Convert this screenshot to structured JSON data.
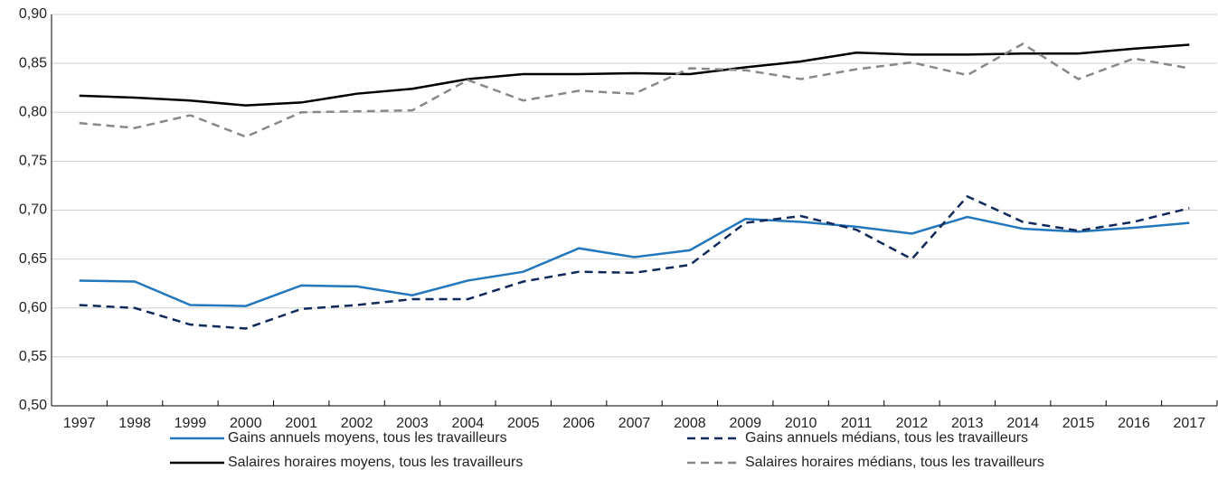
{
  "chart_data": {
    "type": "line",
    "categories": [
      "1997",
      "1998",
      "1999",
      "2000",
      "2001",
      "2002",
      "2003",
      "2004",
      "2005",
      "2006",
      "2007",
      "2008",
      "2009",
      "2010",
      "2011",
      "2012",
      "2013",
      "2014",
      "2015",
      "2016",
      "2017"
    ],
    "series": [
      {
        "name": "Gains annuels moyens, tous les travailleurs",
        "color": "#2277bd",
        "linestyle": "solid",
        "values": [
          0.628,
          0.627,
          0.603,
          0.602,
          0.623,
          0.622,
          0.613,
          0.628,
          0.637,
          0.661,
          0.652,
          0.659,
          0.691,
          0.688,
          0.683,
          0.676,
          0.693,
          0.681,
          0.678,
          0.682,
          0.687
        ]
      },
      {
        "name": "Gains annuels médians, tous les travailleurs",
        "color": "#10285a",
        "linestyle": "dashed",
        "values": [
          0.603,
          0.6,
          0.583,
          0.579,
          0.599,
          0.603,
          0.609,
          0.609,
          0.627,
          0.637,
          0.636,
          0.644,
          0.687,
          0.694,
          0.68,
          0.65,
          0.714,
          0.688,
          0.679,
          0.688,
          0.702
        ]
      },
      {
        "name": "Salaires horaires moyens, tous les travailleurs",
        "color": "#000000",
        "linestyle": "solid",
        "values": [
          0.817,
          0.815,
          0.812,
          0.807,
          0.81,
          0.819,
          0.824,
          0.834,
          0.839,
          0.839,
          0.84,
          0.839,
          0.846,
          0.852,
          0.861,
          0.859,
          0.859,
          0.86,
          0.86,
          0.865,
          0.869
        ]
      },
      {
        "name": "Salaires horaires médians, tous les travailleurs",
        "color": "#888888",
        "linestyle": "dashed",
        "values": [
          0.789,
          0.784,
          0.797,
          0.775,
          0.8,
          0.801,
          0.802,
          0.833,
          0.812,
          0.822,
          0.819,
          0.845,
          0.843,
          0.834,
          0.844,
          0.851,
          0.838,
          0.87,
          0.834,
          0.855,
          0.845
        ]
      }
    ],
    "ylim": [
      0.5,
      0.9
    ],
    "yticks": [
      {
        "value": 0.5,
        "label": "0,50"
      },
      {
        "value": 0.55,
        "label": "0,55"
      },
      {
        "value": 0.6,
        "label": "0,60"
      },
      {
        "value": 0.65,
        "label": "0,65"
      },
      {
        "value": 0.7,
        "label": "0,70"
      },
      {
        "value": 0.75,
        "label": "0,75"
      },
      {
        "value": 0.8,
        "label": "0,80"
      },
      {
        "value": 0.85,
        "label": "0,85"
      },
      {
        "value": 0.9,
        "label": "0,90"
      }
    ],
    "grid": true
  }
}
